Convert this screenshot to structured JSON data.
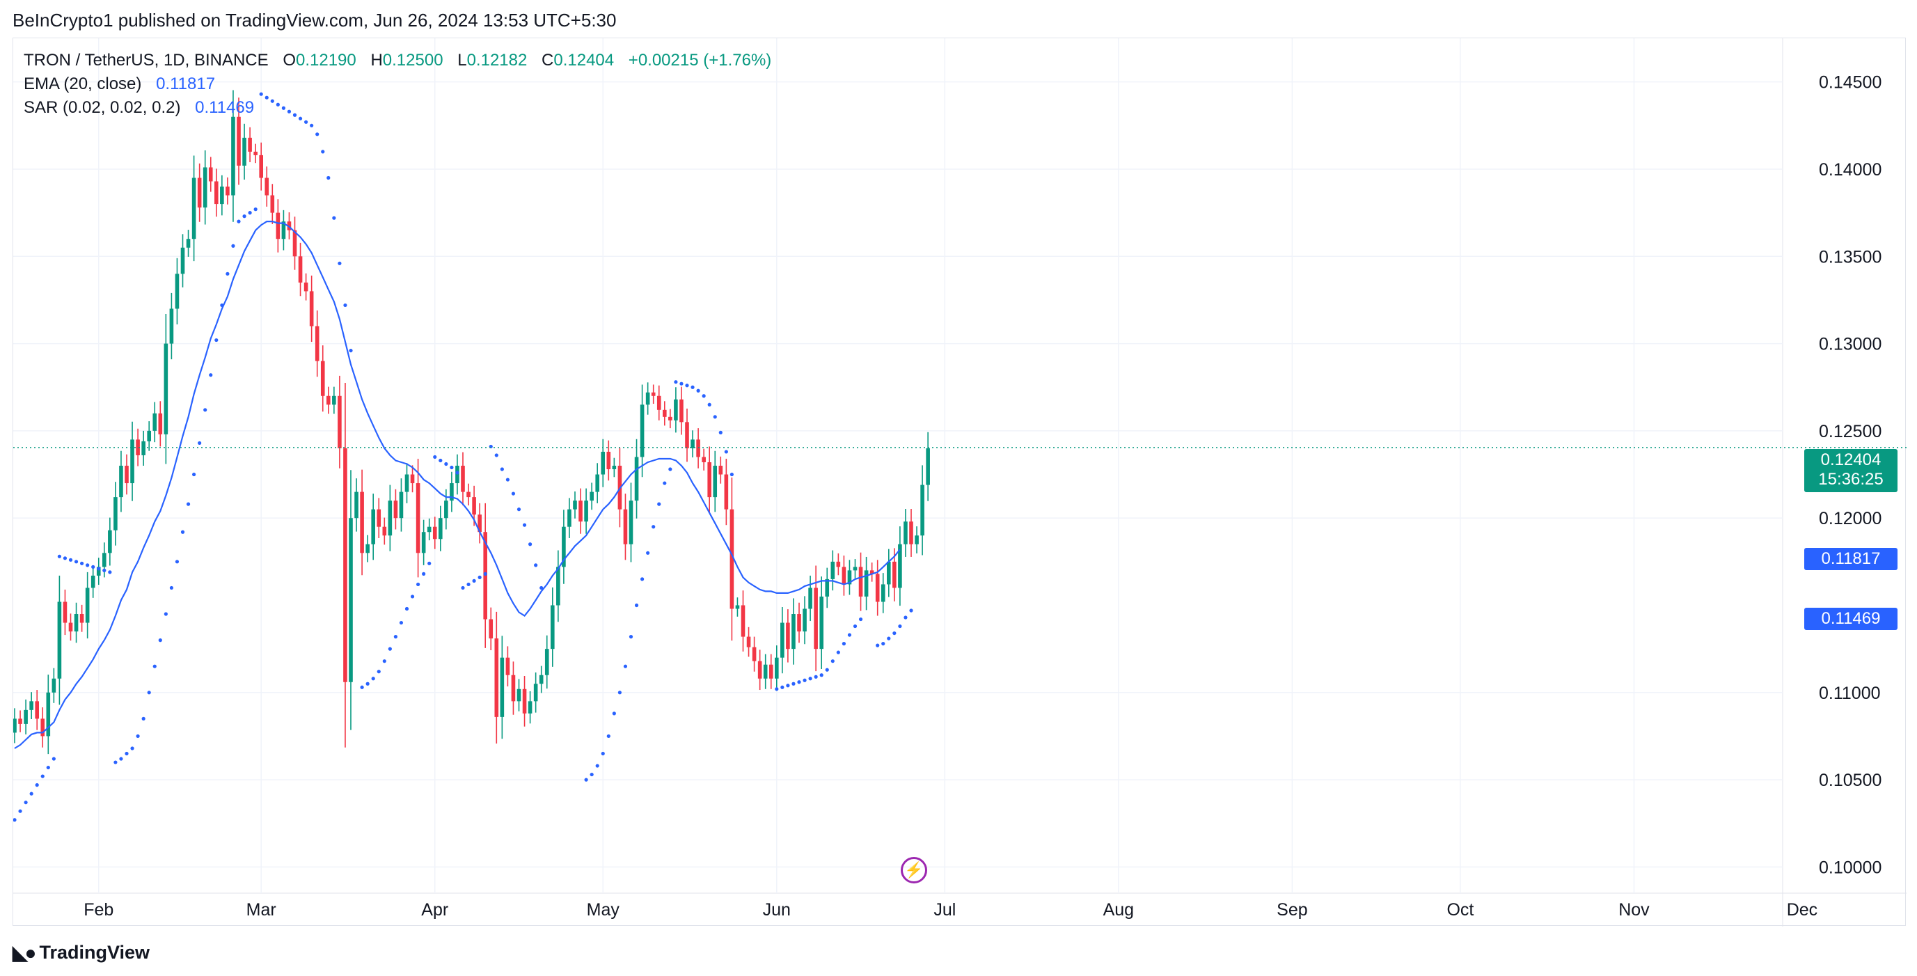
{
  "header": {
    "published_line": "BeInCrypto1 published on TradingView.com, Jun 26, 2024 13:53 UTC+5:30"
  },
  "legend": {
    "symbol": "TRON / TetherUS, 1D, BINANCE",
    "open_label": "O",
    "open": "0.12190",
    "high_label": "H",
    "high": "0.12500",
    "low_label": "L",
    "low": "0.12182",
    "close_label": "C",
    "close": "0.12404",
    "change": "+0.00215 (+1.76%)",
    "ema_label": "EMA (20, close)",
    "ema_value": "0.11817",
    "sar_label": "SAR (0.02, 0.02, 0.2)",
    "sar_value": "0.11469"
  },
  "price_tags": {
    "last_price": "0.12404",
    "countdown": "15:36:25",
    "ema": "0.11817",
    "sar": "0.11469"
  },
  "footer": {
    "brand": "TradingView"
  },
  "colors": {
    "up": "#089981",
    "down": "#f23645",
    "ema": "#2962ff",
    "sar": "#2962ff",
    "grid": "#f0f3fa",
    "event": "#9c27b0"
  },
  "chart_data": {
    "type": "candlestick",
    "y_ticks": [
      "0.14500",
      "0.14000",
      "0.13500",
      "0.13000",
      "0.12500",
      "0.12000",
      "0.11000",
      "0.10500",
      "0.10000"
    ],
    "ylim": [
      0.0985,
      0.1475
    ],
    "x_ticks": [
      "Feb",
      "Mar",
      "Apr",
      "May",
      "Jun",
      "Jul",
      "Aug",
      "Sep",
      "Oct",
      "Nov",
      "Dec"
    ],
    "x_start_date": "2024-01-17",
    "last_price_line": 0.12404,
    "close": [
      0.1085,
      0.1082,
      0.109,
      0.1095,
      0.1085,
      0.1075,
      0.11,
      0.1108,
      0.1152,
      0.114,
      0.1135,
      0.1145,
      0.114,
      0.116,
      0.1167,
      0.1172,
      0.118,
      0.1193,
      0.1212,
      0.123,
      0.122,
      0.1245,
      0.1236,
      0.1244,
      0.125,
      0.126,
      0.1248,
      0.13,
      0.132,
      0.134,
      0.1355,
      0.136,
      0.1395,
      0.1378,
      0.1401,
      0.1393,
      0.138,
      0.139,
      0.1385,
      0.143,
      0.1402,
      0.1418,
      0.141,
      0.1408,
      0.1395,
      0.1385,
      0.1375,
      0.136,
      0.137,
      0.1365,
      0.135,
      0.1335,
      0.133,
      0.131,
      0.129,
      0.127,
      0.1265,
      0.127,
      0.124,
      0.1106,
      0.12,
      0.1215,
      0.118,
      0.1185,
      0.1205,
      0.1195,
      0.119,
      0.121,
      0.12,
      0.1215,
      0.1225,
      0.122,
      0.118,
      0.1192,
      0.1195,
      0.1188,
      0.12,
      0.121,
      0.122,
      0.123,
      0.1215,
      0.1212,
      0.1202,
      0.1192,
      0.1142,
      0.1131,
      0.1086,
      0.112,
      0.111,
      0.1095,
      0.1102,
      0.1088,
      0.1095,
      0.1105,
      0.111,
      0.1125,
      0.115,
      0.1172,
      0.1195,
      0.1205,
      0.121,
      0.1198,
      0.121,
      0.1215,
      0.1225,
      0.1238,
      0.1228,
      0.123,
      0.1205,
      0.1185,
      0.121,
      0.1235,
      0.1265,
      0.1272,
      0.127,
      0.1262,
      0.1258,
      0.1256,
      0.1268,
      0.1255,
      0.124,
      0.1245,
      0.1235,
      0.1232,
      0.1212,
      0.123,
      0.1225,
      0.1205,
      0.1148,
      0.115,
      0.1132,
      0.1126,
      0.1118,
      0.1108,
      0.1116,
      0.1108,
      0.112,
      0.114,
      0.1125,
      0.1145,
      0.1135,
      0.1148,
      0.116,
      0.1125,
      0.1155,
      0.1165,
      0.1175,
      0.1172,
      0.1162,
      0.117,
      0.1172,
      0.1155,
      0.117,
      0.1168,
      0.1152,
      0.1162,
      0.1175,
      0.116,
      0.1185,
      0.1198,
      0.1185,
      0.119,
      0.1219,
      0.124
    ],
    "ema": [
      0.1068,
      0.107,
      0.1073,
      0.1076,
      0.1077,
      0.1077,
      0.108,
      0.1083,
      0.109,
      0.1096,
      0.11,
      0.1105,
      0.1109,
      0.1114,
      0.1119,
      0.1125,
      0.113,
      0.1136,
      0.1144,
      0.1153,
      0.1159,
      0.1169,
      0.1175,
      0.1183,
      0.119,
      0.1198,
      0.1204,
      0.1213,
      0.1223,
      0.1235,
      0.1247,
      0.1258,
      0.1271,
      0.1282,
      0.1292,
      0.1303,
      0.1311,
      0.132,
      0.1327,
      0.1337,
      0.1345,
      0.1353,
      0.1359,
      0.1365,
      0.1368,
      0.137,
      0.137,
      0.1369,
      0.1369,
      0.1367,
      0.1364,
      0.1361,
      0.1357,
      0.1352,
      0.1345,
      0.1338,
      0.1331,
      0.1324,
      0.1314,
      0.1301,
      0.1288,
      0.1278,
      0.1268,
      0.126,
      0.1253,
      0.1246,
      0.124,
      0.1236,
      0.1233,
      0.1232,
      0.1231,
      0.1229,
      0.1226,
      0.1222,
      0.122,
      0.1217,
      0.1214,
      0.1212,
      0.1212,
      0.1211,
      0.1208,
      0.1204,
      0.1199,
      0.1192,
      0.1186,
      0.118,
      0.1173,
      0.1165,
      0.1157,
      0.1151,
      0.1146,
      0.1144,
      0.1148,
      0.1153,
      0.1158,
      0.1162,
      0.1167,
      0.1171,
      0.1176,
      0.118,
      0.1184,
      0.1187,
      0.119,
      0.1195,
      0.12,
      0.1205,
      0.1208,
      0.1212,
      0.1217,
      0.1221,
      0.1225,
      0.1228,
      0.123,
      0.1232,
      0.1233,
      0.1234,
      0.1234,
      0.1234,
      0.1233,
      0.123,
      0.1226,
      0.122,
      0.1215,
      0.1209,
      0.1203,
      0.1197,
      0.1191,
      0.1185,
      0.1179,
      0.1172,
      0.1166,
      0.1163,
      0.1161,
      0.1159,
      0.1158,
      0.1158,
      0.1157,
      0.1157,
      0.1157,
      0.1158,
      0.1159,
      0.1161,
      0.1162,
      0.1163,
      0.1164,
      0.1164,
      0.1164,
      0.1163,
      0.1162,
      0.1163,
      0.1165,
      0.1166,
      0.1167,
      0.1168,
      0.1169,
      0.1172,
      0.1175,
      0.1178,
      0.1182
    ],
    "ema_x_start_index": 0,
    "sar": [
      [
        0,
        0.1027
      ],
      [
        1,
        0.1032
      ],
      [
        2,
        0.1037
      ],
      [
        3,
        0.1042
      ],
      [
        4,
        0.1047
      ],
      [
        5,
        0.1052
      ],
      [
        6,
        0.1057
      ],
      [
        7,
        0.1062
      ],
      [
        8,
        0.1178
      ],
      [
        9,
        0.1177
      ],
      [
        10,
        0.1176
      ],
      [
        11,
        0.1175
      ],
      [
        12,
        0.1174
      ],
      [
        13,
        0.1173
      ],
      [
        14,
        0.1172
      ],
      [
        15,
        0.1171
      ],
      [
        16,
        0.117
      ],
      [
        17,
        0.1169
      ],
      [
        18,
        0.106
      ],
      [
        19,
        0.1062
      ],
      [
        20,
        0.1065
      ],
      [
        21,
        0.1068
      ],
      [
        22,
        0.1075
      ],
      [
        23,
        0.1085
      ],
      [
        24,
        0.11
      ],
      [
        25,
        0.1115
      ],
      [
        26,
        0.113
      ],
      [
        27,
        0.1145
      ],
      [
        28,
        0.116
      ],
      [
        29,
        0.1175
      ],
      [
        30,
        0.1192
      ],
      [
        31,
        0.1208
      ],
      [
        32,
        0.1225
      ],
      [
        33,
        0.1243
      ],
      [
        34,
        0.1262
      ],
      [
        35,
        0.1282
      ],
      [
        36,
        0.1302
      ],
      [
        37,
        0.1322
      ],
      [
        38,
        0.134
      ],
      [
        39,
        0.1356
      ],
      [
        40,
        0.137
      ],
      [
        41,
        0.1373
      ],
      [
        42,
        0.1375
      ],
      [
        43,
        0.1377
      ],
      [
        44,
        0.1443
      ],
      [
        45,
        0.1441
      ],
      [
        46,
        0.1439
      ],
      [
        47,
        0.1437
      ],
      [
        48,
        0.1435
      ],
      [
        49,
        0.1433
      ],
      [
        50,
        0.1431
      ],
      [
        51,
        0.1429
      ],
      [
        52,
        0.1427
      ],
      [
        53,
        0.1425
      ],
      [
        54,
        0.142
      ],
      [
        55,
        0.141
      ],
      [
        56,
        0.1395
      ],
      [
        57,
        0.1372
      ],
      [
        58,
        0.1346
      ],
      [
        59,
        0.1322
      ],
      [
        60,
        0.1296
      ],
      [
        62,
        0.1103
      ],
      [
        63,
        0.1105
      ],
      [
        64,
        0.1108
      ],
      [
        65,
        0.1112
      ],
      [
        66,
        0.1118
      ],
      [
        67,
        0.1125
      ],
      [
        68,
        0.1132
      ],
      [
        69,
        0.114
      ],
      [
        70,
        0.1148
      ],
      [
        71,
        0.1155
      ],
      [
        72,
        0.1162
      ],
      [
        73,
        0.1168
      ],
      [
        74,
        0.1174
      ],
      [
        75,
        0.1235
      ],
      [
        76,
        0.1233
      ],
      [
        77,
        0.1231
      ],
      [
        78,
        0.1229
      ],
      [
        79,
        0.1226
      ],
      [
        80,
        0.116
      ],
      [
        81,
        0.1162
      ],
      [
        82,
        0.1164
      ],
      [
        83,
        0.1166
      ],
      [
        84,
        0.1168
      ],
      [
        85,
        0.1241
      ],
      [
        86,
        0.1236
      ],
      [
        87,
        0.1228
      ],
      [
        88,
        0.1222
      ],
      [
        89,
        0.1214
      ],
      [
        90,
        0.1205
      ],
      [
        91,
        0.1196
      ],
      [
        92,
        0.1185
      ],
      [
        93,
        0.1173
      ],
      [
        94,
        0.116
      ],
      [
        102,
        0.105
      ],
      [
        103,
        0.1053
      ],
      [
        104,
        0.1058
      ],
      [
        105,
        0.1065
      ],
      [
        106,
        0.1075
      ],
      [
        107,
        0.1088
      ],
      [
        108,
        0.11
      ],
      [
        109,
        0.1115
      ],
      [
        110,
        0.1132
      ],
      [
        111,
        0.115
      ],
      [
        112,
        0.1165
      ],
      [
        113,
        0.118
      ],
      [
        114,
        0.1195
      ],
      [
        115,
        0.1208
      ],
      [
        116,
        0.122
      ],
      [
        117,
        0.1228
      ],
      [
        118,
        0.1278
      ],
      [
        119,
        0.1277
      ],
      [
        120,
        0.1276
      ],
      [
        121,
        0.1275
      ],
      [
        122,
        0.1273
      ],
      [
        123,
        0.127
      ],
      [
        124,
        0.1265
      ],
      [
        125,
        0.1258
      ],
      [
        126,
        0.1249
      ],
      [
        127,
        0.1238
      ],
      [
        128,
        0.1225
      ],
      [
        136,
        0.1102
      ],
      [
        137,
        0.1103
      ],
      [
        138,
        0.1104
      ],
      [
        139,
        0.1105
      ],
      [
        140,
        0.1106
      ],
      [
        141,
        0.1107
      ],
      [
        142,
        0.1108
      ],
      [
        143,
        0.1109
      ],
      [
        144,
        0.111
      ],
      [
        145,
        0.1113
      ],
      [
        146,
        0.1118
      ],
      [
        147,
        0.1123
      ],
      [
        148,
        0.1128
      ],
      [
        149,
        0.1133
      ],
      [
        150,
        0.1138
      ],
      [
        151,
        0.1142
      ],
      [
        154,
        0.1127
      ],
      [
        155,
        0.1128
      ],
      [
        156,
        0.1131
      ],
      [
        157,
        0.1134
      ],
      [
        158,
        0.1138
      ],
      [
        159,
        0.1143
      ],
      [
        160,
        0.1147
      ]
    ]
  }
}
